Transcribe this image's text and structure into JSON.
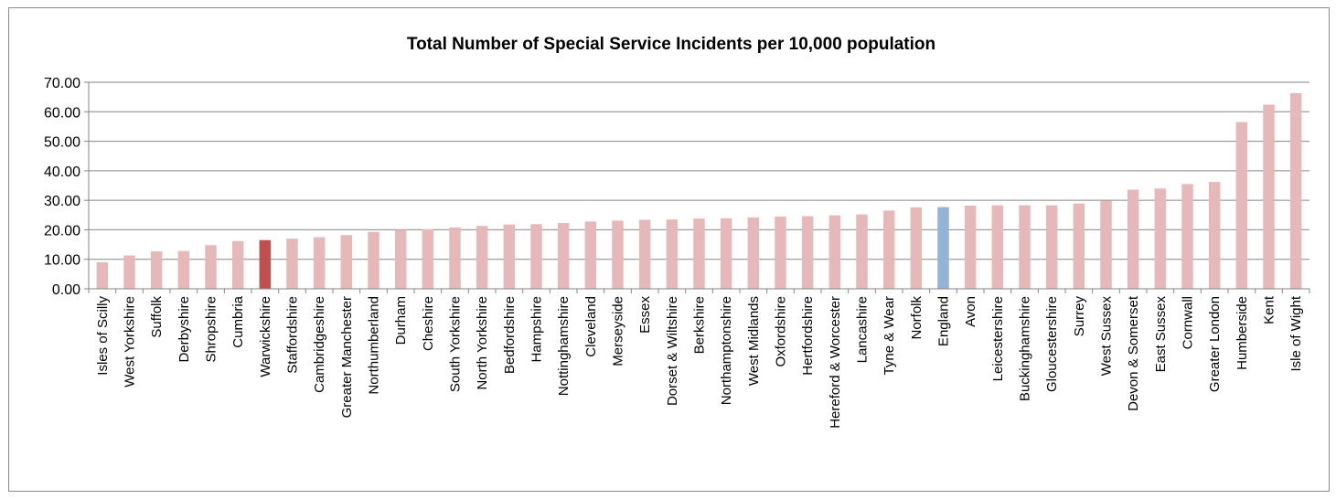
{
  "chart_data": {
    "type": "bar",
    "title": "Total Number of Special Service Incidents per 10,000 population",
    "xlabel": "",
    "ylabel": "",
    "ylim": [
      0,
      70
    ],
    "yticks": [
      "0.00",
      "10.00",
      "20.00",
      "30.00",
      "40.00",
      "50.00",
      "60.00",
      "70.00"
    ],
    "grid": true,
    "legend": "none",
    "categories": [
      "Isles of Scilly",
      "West Yorkshire",
      "Suffolk",
      "Derbyshire",
      "Shropshire",
      "Cumbria",
      "Warwickshire",
      "Staffordshire",
      "Cambridgeshire",
      "Greater Manchester",
      "Northumberland",
      "Durham",
      "Cheshire",
      "South Yorkshire",
      "North Yorkshire",
      "Bedfordshire",
      "Hampshire",
      "Nottinghamshire",
      "Cleveland",
      "Merseyside",
      "Essex",
      "Dorset & Wiltshire",
      "Berkshire",
      "Northamptonshire",
      "West Midlands",
      "Oxfordshire",
      "Hertfordshire",
      "Hereford & Worcester",
      "Lancashire",
      "Tyne & Wear",
      "Norfolk",
      "England",
      "Avon",
      "Leicestershire",
      "Buckinghamshire",
      "Gloucestershire",
      "Surrey",
      "West Sussex",
      "Devon & Somerset",
      "East Sussex",
      "Cornwall",
      "Greater London",
      "Humberside",
      "Kent",
      "Isle of Wight"
    ],
    "values": [
      9.0,
      11.3,
      12.7,
      12.8,
      14.8,
      16.2,
      16.5,
      17.0,
      17.5,
      18.2,
      19.3,
      20.0,
      20.2,
      20.8,
      21.3,
      21.8,
      21.9,
      22.3,
      22.8,
      23.1,
      23.4,
      23.5,
      23.8,
      23.9,
      24.2,
      24.5,
      24.6,
      24.9,
      25.2,
      26.5,
      27.6,
      27.7,
      28.2,
      28.3,
      28.3,
      28.3,
      28.9,
      29.9,
      33.6,
      34.0,
      35.5,
      36.2,
      56.5,
      62.4,
      66.3
    ],
    "colors": {
      "default": "#e6b9b8",
      "highlight": "#c0504d",
      "benchmark": "#95b3d7"
    },
    "highlight_category": "Warwickshire",
    "benchmark_category": "England"
  }
}
